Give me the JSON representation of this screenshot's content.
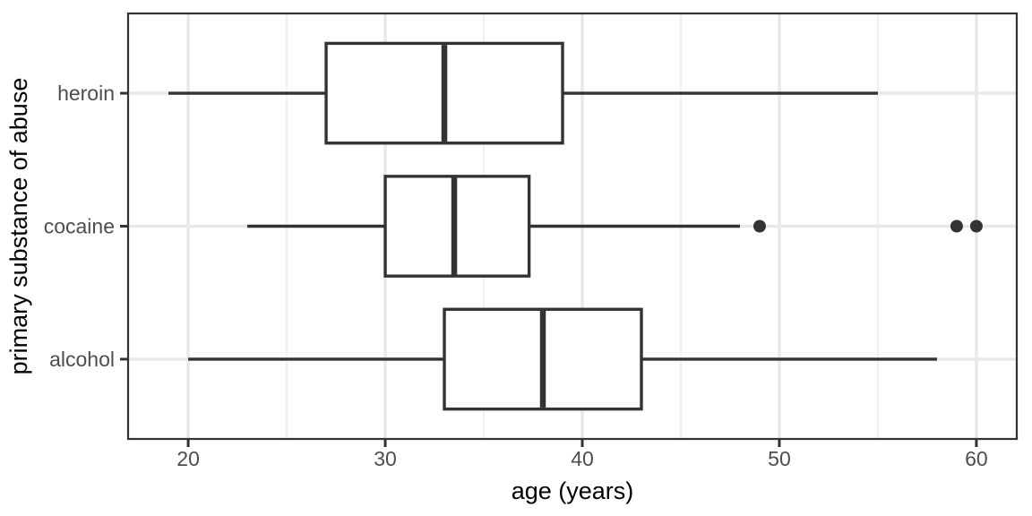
{
  "chart_data": {
    "type": "boxplot",
    "orientation": "horizontal",
    "title": "",
    "xlabel": "age (years)",
    "ylabel": "primary substance of abuse",
    "x_ticks": [
      20,
      30,
      40,
      50,
      60
    ],
    "x_tick_labels": [
      "20",
      "30",
      "40",
      "50",
      "60"
    ],
    "x_minor_ticks": [
      25,
      35,
      45,
      55
    ],
    "xlim": [
      16.95,
      62.05
    ],
    "categories_top_to_bottom": [
      "heroin",
      "cocaine",
      "alcohol"
    ],
    "series": [
      {
        "category": "heroin",
        "whisker_low": 19,
        "q1": 27,
        "median": 33,
        "q3": 39,
        "whisker_high": 55,
        "outliers": []
      },
      {
        "category": "cocaine",
        "whisker_low": 23,
        "q1": 30,
        "median": 33.5,
        "q3": 37.3,
        "whisker_high": 48,
        "outliers": [
          49,
          59,
          60
        ]
      },
      {
        "category": "alcohol",
        "whisker_low": 20,
        "q1": 33,
        "median": 38,
        "q3": 43,
        "whisker_high": 58,
        "outliers": []
      }
    ],
    "grid": true,
    "legend": false,
    "colors": {
      "box_stroke": "#333333",
      "box_fill": "#ffffff",
      "panel_border": "#333333",
      "grid_major": "#e8e8e8",
      "grid_minor": "#f1f1f1",
      "tick_mark": "#333333",
      "tick_label": "#4d4d4d",
      "axis_title": "#000000",
      "background": "#ffffff"
    }
  }
}
